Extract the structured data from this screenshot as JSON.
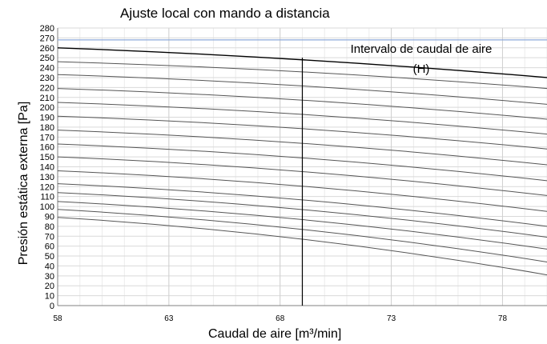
{
  "chart_data": {
    "type": "line",
    "title": "Ajuste local con mando a distancia",
    "xlabel": "Caudal de aire [m³/min]",
    "ylabel": "Presión estática externa [Pa]",
    "xlim": [
      58,
      80
    ],
    "ylim": [
      0,
      280
    ],
    "x_ticks": [
      58,
      63,
      68,
      73,
      78
    ],
    "y_ticks": [
      0,
      10,
      20,
      30,
      40,
      50,
      60,
      70,
      80,
      90,
      100,
      110,
      120,
      130,
      140,
      150,
      160,
      170,
      180,
      190,
      200,
      210,
      220,
      230,
      240,
      250,
      260,
      270,
      280
    ],
    "grid": true,
    "annotation": [
      "Intervalo de caudal de aire",
      "(H)"
    ],
    "vertical_line": {
      "x": 69,
      "y": [
        0,
        250
      ]
    },
    "horizontal_line": {
      "y": 268,
      "color": "#8eaadb"
    },
    "upper_limit_curve": {
      "x": [
        58,
        69,
        80
      ],
      "y": [
        260,
        250,
        230
      ],
      "color": "#000000"
    },
    "fan_curves": [
      {
        "x": [
          58,
          80
        ],
        "y": [
          246,
          219
        ]
      },
      {
        "x": [
          58,
          80
        ],
        "y": [
          233,
          203
        ]
      },
      {
        "x": [
          58,
          80
        ],
        "y": [
          219,
          188
        ]
      },
      {
        "x": [
          58,
          80
        ],
        "y": [
          205,
          173
        ]
      },
      {
        "x": [
          58,
          80
        ],
        "y": [
          191,
          158
        ]
      },
      {
        "x": [
          58,
          80
        ],
        "y": [
          177,
          142
        ]
      },
      {
        "x": [
          58,
          80
        ],
        "y": [
          163,
          126
        ]
      },
      {
        "x": [
          58,
          80
        ],
        "y": [
          150,
          111
        ]
      },
      {
        "x": [
          58,
          80
        ],
        "y": [
          136,
          95
        ]
      },
      {
        "x": [
          58,
          80
        ],
        "y": [
          123,
          80
        ]
      },
      {
        "x": [
          58,
          80
        ],
        "y": [
          114,
          69
        ]
      },
      {
        "x": [
          58,
          80
        ],
        "y": [
          105,
          57
        ]
      },
      {
        "x": [
          58,
          80
        ],
        "y": [
          97,
          44
        ]
      },
      {
        "x": [
          58,
          80
        ],
        "y": [
          89,
          31
        ]
      }
    ]
  }
}
